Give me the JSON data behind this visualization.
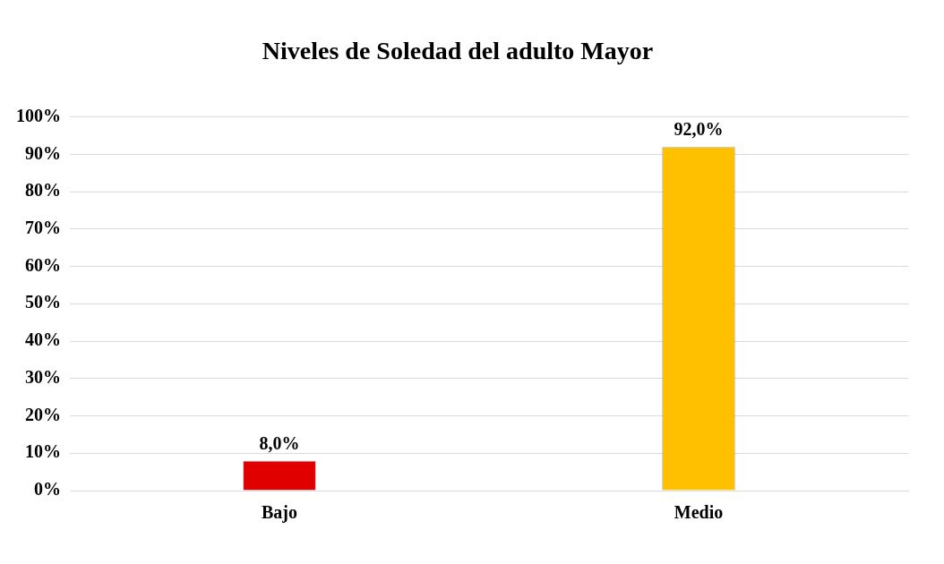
{
  "chart_data": {
    "type": "bar",
    "title": "Niveles de Soledad del adulto Mayor",
    "categories": [
      "Bajo",
      "Medio"
    ],
    "values": [
      8,
      92
    ],
    "value_labels": [
      "8,0%",
      "92,0%"
    ],
    "colors": [
      "#e00000",
      "#ffc000"
    ],
    "ylim": [
      0,
      100
    ],
    "yticks": [
      {
        "value": 0,
        "label": "0%"
      },
      {
        "value": 10,
        "label": "10%"
      },
      {
        "value": 20,
        "label": "20%"
      },
      {
        "value": 30,
        "label": "30%"
      },
      {
        "value": 40,
        "label": "40%"
      },
      {
        "value": 50,
        "label": "50%"
      },
      {
        "value": 60,
        "label": "60%"
      },
      {
        "value": 70,
        "label": "70%"
      },
      {
        "value": 80,
        "label": "80%"
      },
      {
        "value": 90,
        "label": "90%"
      },
      {
        "value": 100,
        "label": "100%"
      }
    ],
    "grid": "y",
    "legend": false
  }
}
